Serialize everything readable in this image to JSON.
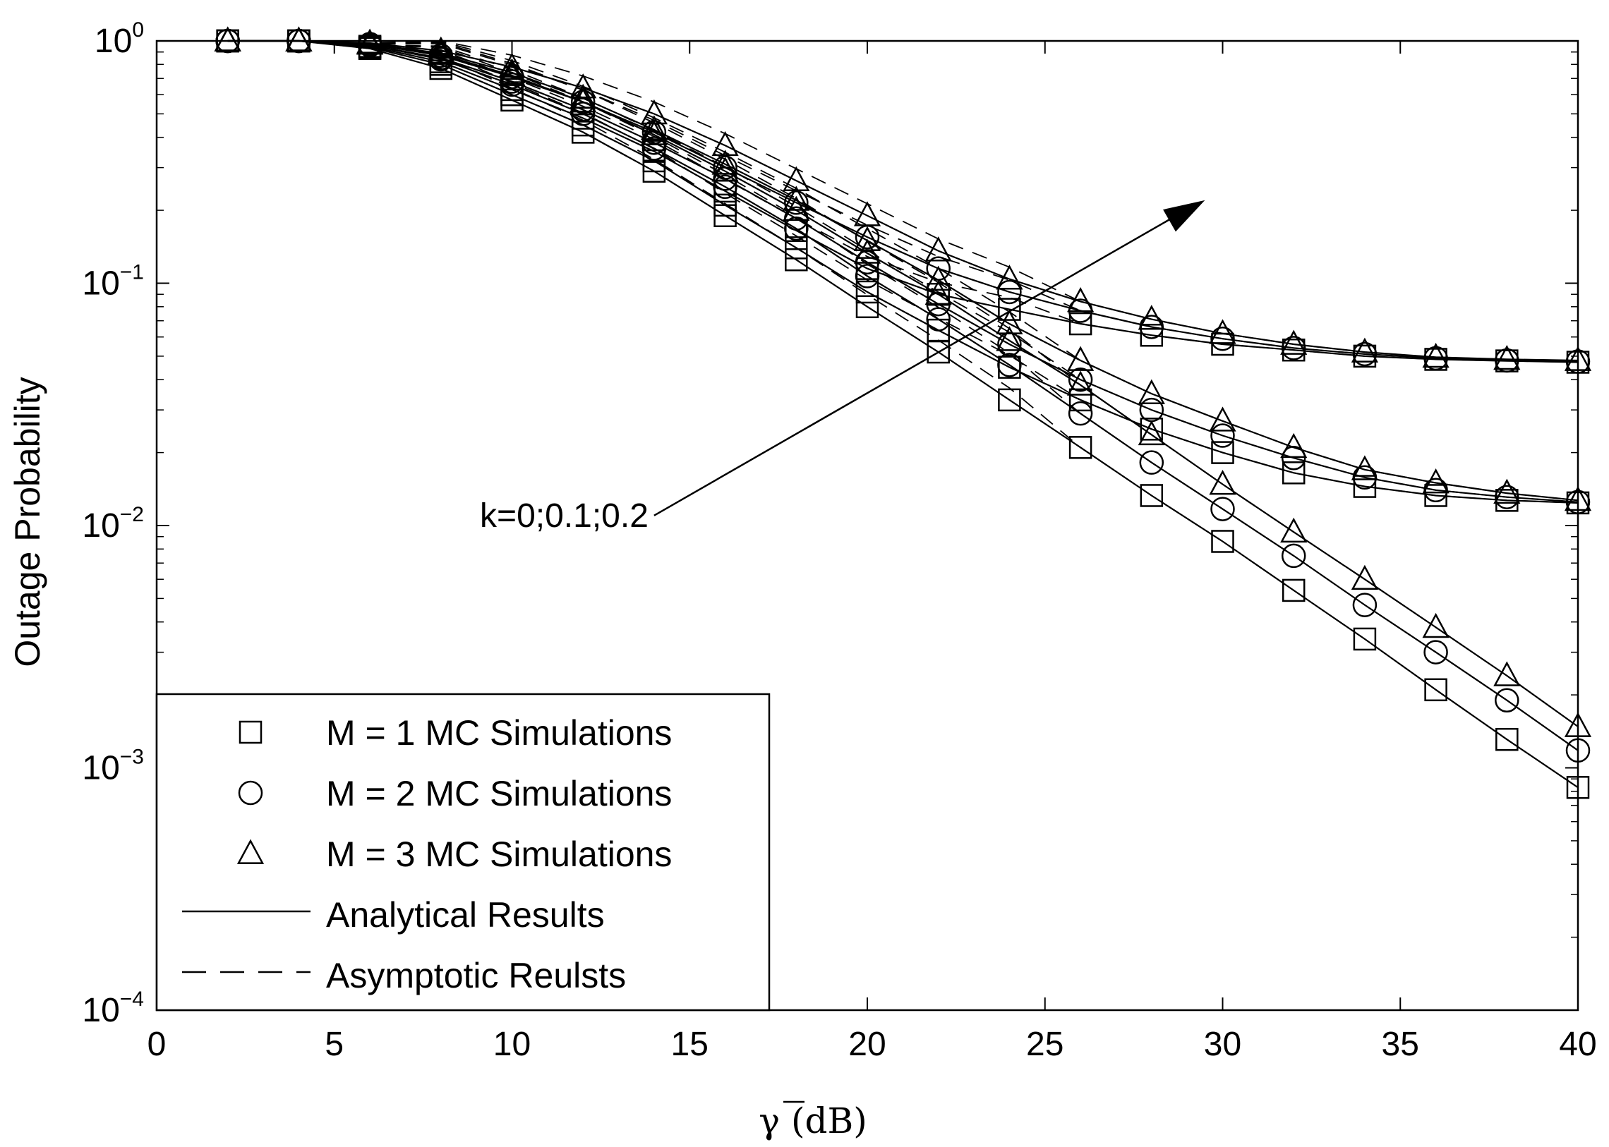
{
  "chart_data": {
    "type": "line",
    "title": "",
    "xlabel": "γ (dB)",
    "ylabel": "Outage Probability",
    "xlim": [
      0,
      40
    ],
    "ylim": [
      0.0001,
      1
    ],
    "yscale": "log",
    "grid": false,
    "legend_position": "bottom-left",
    "x_ticks": [
      "0",
      "5",
      "10",
      "15",
      "20",
      "25",
      "30",
      "35",
      "40"
    ],
    "y_ticks": [
      {
        "base": "10",
        "exp": "0"
      },
      {
        "base": "10",
        "exp": "−1"
      },
      {
        "base": "10",
        "exp": "−2"
      },
      {
        "base": "10",
        "exp": "−3"
      },
      {
        "base": "10",
        "exp": "−4"
      }
    ],
    "legend": [
      {
        "label": "M = 1 MC Simulations",
        "symbol": "square"
      },
      {
        "label": "M = 2 MC Simulations",
        "symbol": "circle"
      },
      {
        "label": "M = 3 MC Simulations",
        "symbol": "triangle"
      },
      {
        "label": "Analytical   Results",
        "symbol": "solid-line"
      },
      {
        "label": "Asymptotic Reulsts",
        "symbol": "dashed-line"
      }
    ],
    "annotation": {
      "text": "k=0;0.1;0.2",
      "from": [
        14,
        0.011
      ],
      "to": [
        29.5,
        0.22
      ]
    },
    "x": [
      2,
      4,
      6,
      8,
      10,
      12,
      14,
      16,
      18,
      20,
      22,
      24,
      26,
      28,
      30,
      32,
      34,
      36,
      38,
      40
    ],
    "series": [
      {
        "name": "M=1, k=0",
        "marker": "square",
        "values": [
          1,
          1,
          0.93,
          0.77,
          0.57,
          0.42,
          0.29,
          0.19,
          0.125,
          0.08,
          0.052,
          0.033,
          0.021,
          0.0133,
          0.0086,
          0.0054,
          0.0034,
          0.0021,
          0.00131,
          0.00083
        ]
      },
      {
        "name": "M=2, k=0",
        "marker": "circle",
        "values": [
          1,
          1,
          0.96,
          0.84,
          0.66,
          0.5,
          0.36,
          0.25,
          0.168,
          0.107,
          0.071,
          0.046,
          0.029,
          0.0182,
          0.0117,
          0.0075,
          0.0047,
          0.003,
          0.0019,
          0.00118
        ]
      },
      {
        "name": "M=3, k=0",
        "marker": "triangle",
        "values": [
          1,
          1,
          0.97,
          0.88,
          0.72,
          0.56,
          0.41,
          0.29,
          0.2,
          0.133,
          0.09,
          0.058,
          0.038,
          0.0237,
          0.0148,
          0.0094,
          0.006,
          0.0038,
          0.0024,
          0.00148
        ]
      },
      {
        "name": "M=1, k=0.1",
        "marker": "square",
        "values": [
          1,
          1,
          0.94,
          0.8,
          0.6,
          0.45,
          0.32,
          0.21,
          0.14,
          0.092,
          0.064,
          0.045,
          0.033,
          0.025,
          0.02,
          0.0165,
          0.0145,
          0.0133,
          0.0127,
          0.0124
        ]
      },
      {
        "name": "M=2, k=0.1",
        "marker": "circle",
        "values": [
          1,
          1,
          0.96,
          0.85,
          0.68,
          0.52,
          0.38,
          0.27,
          0.185,
          0.122,
          0.082,
          0.056,
          0.04,
          0.03,
          0.0235,
          0.019,
          0.0158,
          0.014,
          0.0131,
          0.0125
        ]
      },
      {
        "name": "M=3, k=0.1",
        "marker": "triangle",
        "values": [
          1,
          1,
          0.97,
          0.89,
          0.74,
          0.58,
          0.43,
          0.31,
          0.22,
          0.15,
          0.103,
          0.068,
          0.048,
          0.035,
          0.027,
          0.021,
          0.017,
          0.015,
          0.0136,
          0.0127
        ]
      },
      {
        "name": "M=1, k=0.2",
        "marker": "square",
        "values": [
          1,
          1,
          0.95,
          0.82,
          0.63,
          0.48,
          0.35,
          0.24,
          0.165,
          0.115,
          0.09,
          0.078,
          0.068,
          0.061,
          0.056,
          0.053,
          0.05,
          0.0485,
          0.0478,
          0.0472
        ]
      },
      {
        "name": "M=2, k=0.2",
        "marker": "circle",
        "values": [
          1,
          1,
          0.97,
          0.87,
          0.71,
          0.56,
          0.42,
          0.3,
          0.215,
          0.155,
          0.115,
          0.092,
          0.077,
          0.066,
          0.059,
          0.054,
          0.051,
          0.049,
          0.048,
          0.0475
        ]
      },
      {
        "name": "M=3, k=0.2",
        "marker": "triangle",
        "values": [
          1,
          1,
          0.98,
          0.91,
          0.78,
          0.64,
          0.5,
          0.37,
          0.265,
          0.19,
          0.136,
          0.104,
          0.084,
          0.071,
          0.062,
          0.056,
          0.052,
          0.0495,
          0.0485,
          0.048
        ]
      }
    ]
  }
}
